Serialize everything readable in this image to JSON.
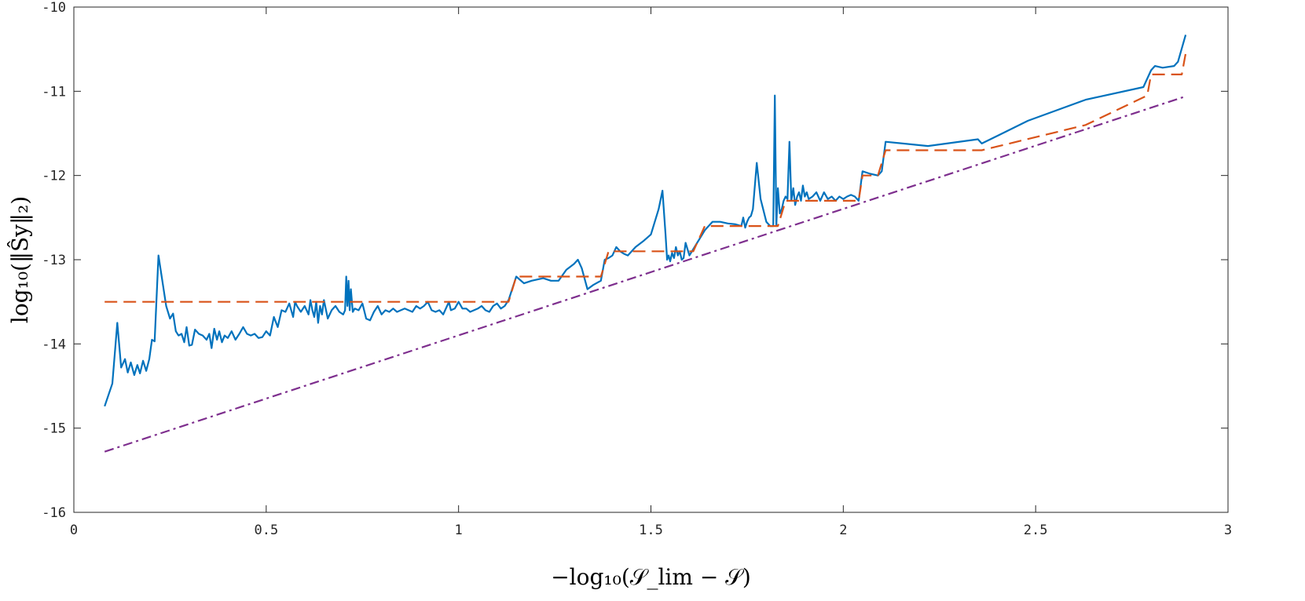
{
  "chart_data": {
    "type": "line",
    "title": "",
    "xlabel": "−log₁₀(𝒮_lim − 𝒮)",
    "ylabel": "log₁₀(‖Ŝy‖₂)",
    "xlim": [
      0,
      3
    ],
    "ylim": [
      -16,
      -10
    ],
    "xticks": [
      0,
      0.5,
      1,
      1.5,
      2,
      2.5,
      3
    ],
    "xtick_labels": [
      "0",
      "0.5",
      "1",
      "1.5",
      "2",
      "2.5",
      "3"
    ],
    "yticks": [
      -16,
      -15,
      -14,
      -13,
      -12,
      -11,
      -10
    ],
    "ytick_labels": [
      "-16",
      "-15",
      "-14",
      "-13",
      "-12",
      "-11",
      "-10"
    ],
    "grid": false,
    "legend": "none",
    "series": [
      {
        "color": "#0072BD",
        "style": "solid",
        "points": [
          [
            0.08,
            -14.74
          ],
          [
            0.1,
            -14.47
          ],
          [
            0.113,
            -13.75
          ],
          [
            0.123,
            -14.28
          ],
          [
            0.133,
            -14.18
          ],
          [
            0.14,
            -14.34
          ],
          [
            0.148,
            -14.22
          ],
          [
            0.157,
            -14.37
          ],
          [
            0.165,
            -14.25
          ],
          [
            0.172,
            -14.35
          ],
          [
            0.18,
            -14.2
          ],
          [
            0.188,
            -14.32
          ],
          [
            0.196,
            -14.18
          ],
          [
            0.203,
            -13.95
          ],
          [
            0.21,
            -13.97
          ],
          [
            0.22,
            -12.95
          ],
          [
            0.23,
            -13.25
          ],
          [
            0.24,
            -13.55
          ],
          [
            0.25,
            -13.7
          ],
          [
            0.258,
            -13.64
          ],
          [
            0.265,
            -13.85
          ],
          [
            0.272,
            -13.9
          ],
          [
            0.28,
            -13.88
          ],
          [
            0.287,
            -13.98
          ],
          [
            0.293,
            -13.8
          ],
          [
            0.3,
            -14.02
          ],
          [
            0.307,
            -14.01
          ],
          [
            0.315,
            -13.83
          ],
          [
            0.325,
            -13.88
          ],
          [
            0.335,
            -13.9
          ],
          [
            0.345,
            -13.95
          ],
          [
            0.352,
            -13.88
          ],
          [
            0.358,
            -14.05
          ],
          [
            0.365,
            -13.82
          ],
          [
            0.372,
            -13.95
          ],
          [
            0.378,
            -13.85
          ],
          [
            0.385,
            -13.98
          ],
          [
            0.392,
            -13.9
          ],
          [
            0.4,
            -13.93
          ],
          [
            0.41,
            -13.85
          ],
          [
            0.42,
            -13.95
          ],
          [
            0.43,
            -13.88
          ],
          [
            0.44,
            -13.8
          ],
          [
            0.45,
            -13.88
          ],
          [
            0.46,
            -13.9
          ],
          [
            0.47,
            -13.88
          ],
          [
            0.48,
            -13.93
          ],
          [
            0.49,
            -13.92
          ],
          [
            0.5,
            -13.85
          ],
          [
            0.51,
            -13.9
          ],
          [
            0.52,
            -13.68
          ],
          [
            0.53,
            -13.8
          ],
          [
            0.54,
            -13.6
          ],
          [
            0.55,
            -13.62
          ],
          [
            0.56,
            -13.52
          ],
          [
            0.57,
            -13.68
          ],
          [
            0.575,
            -13.5
          ],
          [
            0.58,
            -13.55
          ],
          [
            0.59,
            -13.62
          ],
          [
            0.6,
            -13.55
          ],
          [
            0.61,
            -13.65
          ],
          [
            0.615,
            -13.48
          ],
          [
            0.62,
            -13.6
          ],
          [
            0.625,
            -13.68
          ],
          [
            0.63,
            -13.5
          ],
          [
            0.635,
            -13.75
          ],
          [
            0.64,
            -13.55
          ],
          [
            0.645,
            -13.65
          ],
          [
            0.65,
            -13.48
          ],
          [
            0.66,
            -13.7
          ],
          [
            0.67,
            -13.6
          ],
          [
            0.68,
            -13.55
          ],
          [
            0.69,
            -13.62
          ],
          [
            0.7,
            -13.65
          ],
          [
            0.705,
            -13.6
          ],
          [
            0.708,
            -13.2
          ],
          [
            0.711,
            -13.55
          ],
          [
            0.714,
            -13.25
          ],
          [
            0.717,
            -13.6
          ],
          [
            0.72,
            -13.35
          ],
          [
            0.725,
            -13.62
          ],
          [
            0.73,
            -13.58
          ],
          [
            0.74,
            -13.6
          ],
          [
            0.75,
            -13.52
          ],
          [
            0.76,
            -13.7
          ],
          [
            0.77,
            -13.72
          ],
          [
            0.78,
            -13.62
          ],
          [
            0.79,
            -13.55
          ],
          [
            0.8,
            -13.65
          ],
          [
            0.81,
            -13.6
          ],
          [
            0.82,
            -13.62
          ],
          [
            0.83,
            -13.58
          ],
          [
            0.84,
            -13.62
          ],
          [
            0.85,
            -13.6
          ],
          [
            0.86,
            -13.58
          ],
          [
            0.87,
            -13.6
          ],
          [
            0.88,
            -13.62
          ],
          [
            0.89,
            -13.55
          ],
          [
            0.9,
            -13.58
          ],
          [
            0.91,
            -13.55
          ],
          [
            0.92,
            -13.5
          ],
          [
            0.93,
            -13.6
          ],
          [
            0.94,
            -13.62
          ],
          [
            0.95,
            -13.6
          ],
          [
            0.96,
            -13.65
          ],
          [
            0.97,
            -13.55
          ],
          [
            0.975,
            -13.5
          ],
          [
            0.98,
            -13.6
          ],
          [
            0.99,
            -13.58
          ],
          [
            1.0,
            -13.5
          ],
          [
            1.01,
            -13.58
          ],
          [
            1.02,
            -13.58
          ],
          [
            1.03,
            -13.62
          ],
          [
            1.04,
            -13.6
          ],
          [
            1.05,
            -13.58
          ],
          [
            1.06,
            -13.55
          ],
          [
            1.07,
            -13.6
          ],
          [
            1.08,
            -13.62
          ],
          [
            1.09,
            -13.55
          ],
          [
            1.1,
            -13.52
          ],
          [
            1.11,
            -13.58
          ],
          [
            1.12,
            -13.55
          ],
          [
            1.13,
            -13.48
          ],
          [
            1.15,
            -13.2
          ],
          [
            1.17,
            -13.28
          ],
          [
            1.19,
            -13.25
          ],
          [
            1.22,
            -13.22
          ],
          [
            1.24,
            -13.25
          ],
          [
            1.26,
            -13.25
          ],
          [
            1.28,
            -13.12
          ],
          [
            1.3,
            -13.05
          ],
          [
            1.31,
            -13.0
          ],
          [
            1.32,
            -13.1
          ],
          [
            1.335,
            -13.35
          ],
          [
            1.35,
            -13.3
          ],
          [
            1.37,
            -13.25
          ],
          [
            1.38,
            -13.0
          ],
          [
            1.39,
            -12.98
          ],
          [
            1.4,
            -12.95
          ],
          [
            1.41,
            -12.85
          ],
          [
            1.42,
            -12.9
          ],
          [
            1.43,
            -12.93
          ],
          [
            1.44,
            -12.95
          ],
          [
            1.46,
            -12.85
          ],
          [
            1.48,
            -12.78
          ],
          [
            1.5,
            -12.7
          ],
          [
            1.52,
            -12.4
          ],
          [
            1.53,
            -12.18
          ],
          [
            1.538,
            -12.7
          ],
          [
            1.542,
            -13.0
          ],
          [
            1.546,
            -12.95
          ],
          [
            1.55,
            -13.02
          ],
          [
            1.555,
            -12.92
          ],
          [
            1.56,
            -12.98
          ],
          [
            1.565,
            -12.85
          ],
          [
            1.57,
            -12.95
          ],
          [
            1.575,
            -12.9
          ],
          [
            1.58,
            -13.0
          ],
          [
            1.585,
            -12.98
          ],
          [
            1.59,
            -12.8
          ],
          [
            1.6,
            -12.95
          ],
          [
            1.62,
            -12.8
          ],
          [
            1.64,
            -12.65
          ],
          [
            1.66,
            -12.55
          ],
          [
            1.68,
            -12.55
          ],
          [
            1.7,
            -12.57
          ],
          [
            1.72,
            -12.58
          ],
          [
            1.735,
            -12.6
          ],
          [
            1.74,
            -12.5
          ],
          [
            1.745,
            -12.62
          ],
          [
            1.75,
            -12.55
          ],
          [
            1.755,
            -12.5
          ],
          [
            1.76,
            -12.48
          ],
          [
            1.765,
            -12.4
          ],
          [
            1.775,
            -11.85
          ],
          [
            1.785,
            -12.28
          ],
          [
            1.8,
            -12.55
          ],
          [
            1.81,
            -12.6
          ],
          [
            1.818,
            -12.6
          ],
          [
            1.822,
            -11.05
          ],
          [
            1.826,
            -12.6
          ],
          [
            1.83,
            -12.15
          ],
          [
            1.835,
            -12.45
          ],
          [
            1.84,
            -12.4
          ],
          [
            1.845,
            -12.3
          ],
          [
            1.85,
            -12.25
          ],
          [
            1.855,
            -12.28
          ],
          [
            1.86,
            -11.6
          ],
          [
            1.865,
            -12.3
          ],
          [
            1.87,
            -12.15
          ],
          [
            1.875,
            -12.35
          ],
          [
            1.88,
            -12.25
          ],
          [
            1.885,
            -12.2
          ],
          [
            1.89,
            -12.3
          ],
          [
            1.895,
            -12.12
          ],
          [
            1.9,
            -12.25
          ],
          [
            1.905,
            -12.2
          ],
          [
            1.91,
            -12.28
          ],
          [
            1.92,
            -12.25
          ],
          [
            1.93,
            -12.2
          ],
          [
            1.94,
            -12.3
          ],
          [
            1.95,
            -12.2
          ],
          [
            1.96,
            -12.28
          ],
          [
            1.97,
            -12.25
          ],
          [
            1.98,
            -12.3
          ],
          [
            1.99,
            -12.25
          ],
          [
            2.0,
            -12.28
          ],
          [
            2.01,
            -12.25
          ],
          [
            2.02,
            -12.23
          ],
          [
            2.03,
            -12.25
          ],
          [
            2.04,
            -12.3
          ],
          [
            2.05,
            -11.95
          ],
          [
            2.07,
            -11.98
          ],
          [
            2.09,
            -12.0
          ],
          [
            2.1,
            -11.95
          ],
          [
            2.11,
            -11.6
          ],
          [
            2.22,
            -11.65
          ],
          [
            2.35,
            -11.57
          ],
          [
            2.36,
            -11.62
          ],
          [
            2.48,
            -11.35
          ],
          [
            2.63,
            -11.1
          ],
          [
            2.78,
            -10.95
          ],
          [
            2.8,
            -10.75
          ],
          [
            2.81,
            -10.7
          ],
          [
            2.83,
            -10.72
          ],
          [
            2.86,
            -10.7
          ],
          [
            2.87,
            -10.65
          ],
          [
            2.89,
            -10.33
          ]
        ]
      },
      {
        "color": "#D95319",
        "style": "dashed",
        "points": [
          [
            0.08,
            -13.5
          ],
          [
            1.13,
            -13.5
          ],
          [
            1.15,
            -13.2
          ],
          [
            1.37,
            -13.2
          ],
          [
            1.39,
            -12.9
          ],
          [
            1.61,
            -12.9
          ],
          [
            1.64,
            -12.6
          ],
          [
            1.83,
            -12.6
          ],
          [
            1.85,
            -12.3
          ],
          [
            2.04,
            -12.3
          ],
          [
            2.05,
            -12.0
          ],
          [
            2.09,
            -12.0
          ],
          [
            2.11,
            -11.7
          ],
          [
            2.36,
            -11.7
          ],
          [
            2.63,
            -11.4
          ],
          [
            2.79,
            -11.05
          ],
          [
            2.8,
            -10.8
          ],
          [
            2.88,
            -10.8
          ],
          [
            2.89,
            -10.55
          ]
        ]
      },
      {
        "color": "#7E2F8E",
        "style": "dashdot",
        "points": [
          [
            0.08,
            -15.28
          ],
          [
            2.89,
            -11.06
          ]
        ]
      }
    ]
  }
}
